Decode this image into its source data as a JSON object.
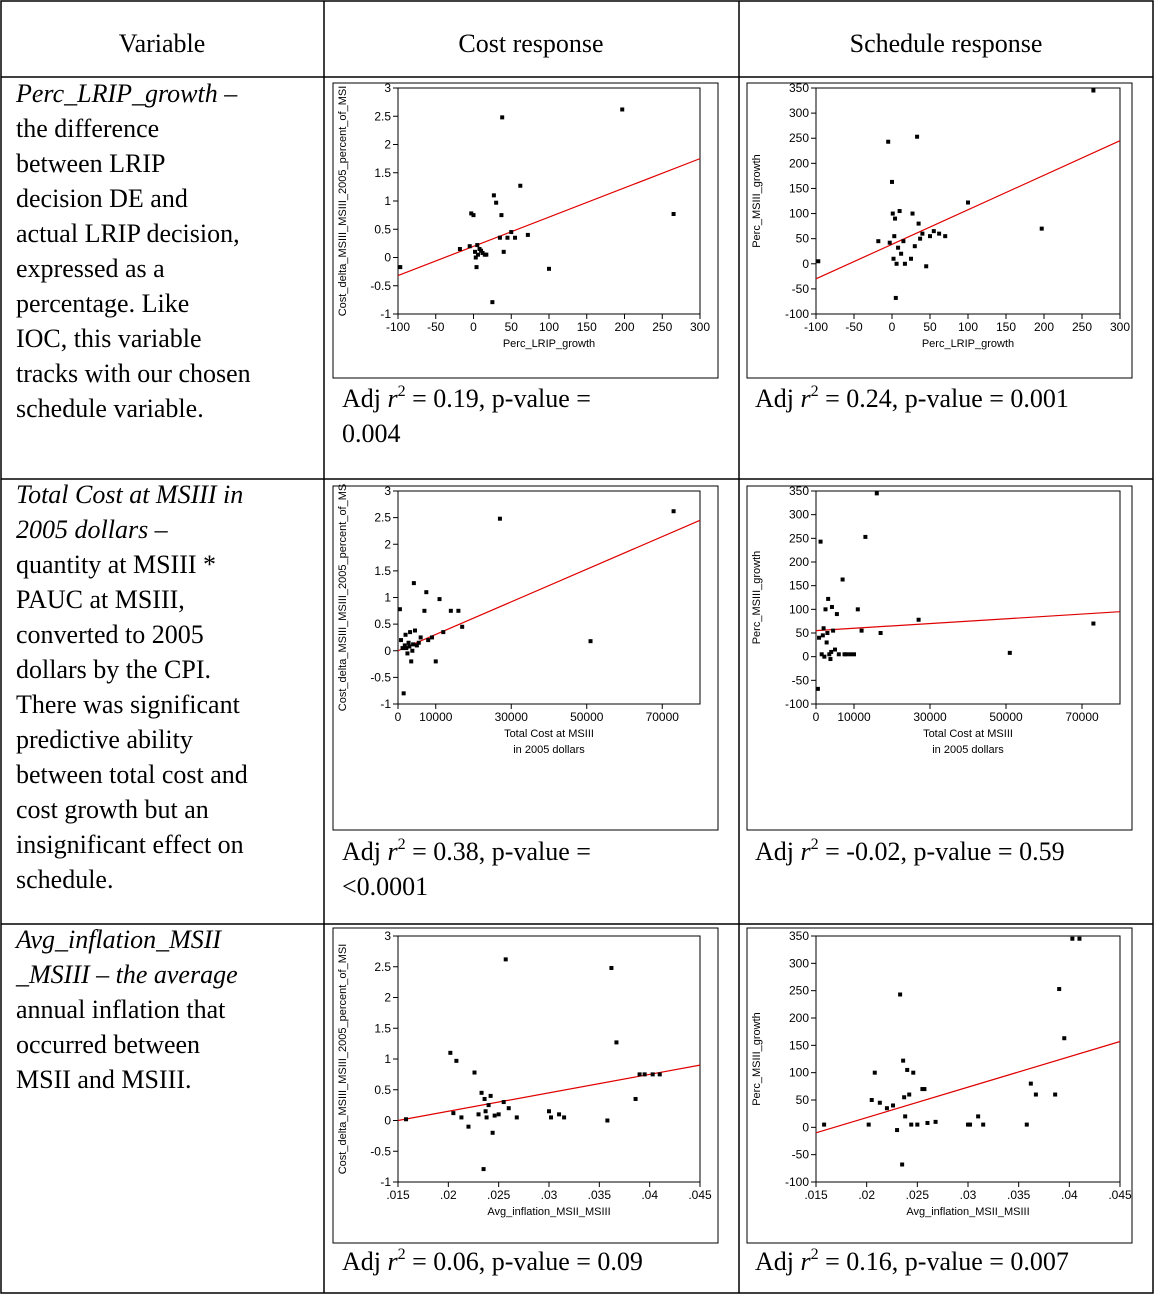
{
  "header": {
    "variable": "Variable",
    "cost": "Cost response",
    "schedule": "Schedule response"
  },
  "rows": [
    {
      "desc_lines": [
        {
          "t": "Perc_LRIP_growth –",
          "i": true
        },
        {
          "t": "the difference",
          "i": false
        },
        {
          "t": "between LRIP",
          "i": false
        },
        {
          "t": "decision DE and",
          "i": false
        },
        {
          "t": "actual LRIP decision,",
          "i": false
        },
        {
          "t": "expressed as a",
          "i": false
        },
        {
          "t": "percentage.  Like",
          "i": false
        },
        {
          "t": "IOC, this variable",
          "i": false
        },
        {
          "t": "tracks with our chosen",
          "i": false
        },
        {
          "t": "schedule variable.",
          "i": false
        }
      ],
      "cost_stat_lines": [
        "Adj r² = 0.19, p-value =",
        "0.004"
      ],
      "sched_stat_lines": [
        "Adj r² = 0.24, p-value = 0.001"
      ]
    },
    {
      "desc_lines": [
        {
          "t": "Total Cost at MSIII in",
          "i": true
        },
        {
          "t": "2005 dollars –",
          "i": true
        },
        {
          "t": "quantity at MSIII *",
          "i": false
        },
        {
          "t": "PAUC at MSIII,",
          "i": false
        },
        {
          "t": "converted to 2005",
          "i": false
        },
        {
          "t": "dollars by the CPI.",
          "i": false
        },
        {
          "t": "There was significant",
          "i": false
        },
        {
          "t": "predictive ability",
          "i": false
        },
        {
          "t": "between total cost and",
          "i": false
        },
        {
          "t": "cost growth but an",
          "i": false
        },
        {
          "t": "insignificant effect on",
          "i": false
        },
        {
          "t": "schedule.",
          "i": false
        }
      ],
      "cost_stat_lines": [
        "Adj r² = 0.38, p-value =",
        "<0.0001"
      ],
      "sched_stat_lines": [
        "Adj r² = -0.02, p-value = 0.59"
      ]
    },
    {
      "desc_lines": [
        {
          "t": "Avg_inflation_MSII",
          "i": true
        },
        {
          "t": "_MSIII – the average",
          "i": true
        },
        {
          "t": "annual inflation that",
          "i": false
        },
        {
          "t": "occurred between",
          "i": false
        },
        {
          "t": "MSII and MSIII.",
          "i": false
        }
      ],
      "cost_stat_lines": [
        "Adj r² = 0.06, p-value = 0.09"
      ],
      "sched_stat_lines": [
        "Adj r² = 0.16, p-value = 0.007"
      ]
    }
  ],
  "chart_data": [
    {
      "type": "scatter",
      "id": "cost-lrip",
      "xlabel": [
        "Perc_LRIP_growth"
      ],
      "ylabel": "Cost_delta_MSIII_MSIII_2005_percent_of_MSI",
      "xlim": [
        -100,
        300
      ],
      "ylim": [
        -1,
        3
      ],
      "xticks": [
        -100,
        -50,
        0,
        50,
        100,
        150,
        200,
        250,
        300
      ],
      "xtick_labels": [
        "-100",
        "-50",
        "0",
        "50",
        "100",
        "150",
        "200",
        "250",
        "300"
      ],
      "yticks": [
        -1,
        -0.5,
        0,
        0.5,
        1,
        1.5,
        2,
        2.5,
        3
      ],
      "ytick_labels": [
        "-1",
        "-0.5",
        "0",
        "0.5",
        "1",
        "1.5",
        "2",
        "2.5",
        "3"
      ],
      "fit": [
        [
          -100,
          -0.32
        ],
        [
          300,
          1.75
        ]
      ],
      "points": [
        [
          -97,
          -0.17
        ],
        [
          -18,
          0.15
        ],
        [
          -5,
          0.2
        ],
        [
          -3,
          0.78
        ],
        [
          0,
          0.75
        ],
        [
          2,
          0.1
        ],
        [
          3,
          0.0
        ],
        [
          4,
          -0.17
        ],
        [
          5,
          0.22
        ],
        [
          6,
          0.05
        ],
        [
          8,
          0.15
        ],
        [
          10,
          0.12
        ],
        [
          12,
          0.08
        ],
        [
          15,
          0.05
        ],
        [
          17,
          0.05
        ],
        [
          25,
          -0.79
        ],
        [
          27,
          1.1
        ],
        [
          30,
          0.97
        ],
        [
          35,
          0.35
        ],
        [
          37,
          0.75
        ],
        [
          38,
          2.48
        ],
        [
          40,
          0.1
        ],
        [
          45,
          0.35
        ],
        [
          50,
          0.45
        ],
        [
          55,
          0.35
        ],
        [
          62,
          1.27
        ],
        [
          72,
          0.4
        ],
        [
          100,
          -0.2
        ],
        [
          197,
          2.62
        ],
        [
          265,
          0.77
        ]
      ]
    },
    {
      "type": "scatter",
      "id": "sched-lrip",
      "xlabel": [
        "Perc_LRIP_growth"
      ],
      "ylabel": "Perc_MSIII_growth",
      "xlim": [
        -100,
        300
      ],
      "ylim": [
        -100,
        350
      ],
      "xticks": [
        -100,
        -50,
        0,
        50,
        100,
        150,
        200,
        250,
        300
      ],
      "xtick_labels": [
        "-100",
        "-50",
        "0",
        "50",
        "100",
        "150",
        "200",
        "250",
        "300"
      ],
      "yticks": [
        -100,
        -50,
        0,
        50,
        100,
        150,
        200,
        250,
        300,
        350
      ],
      "ytick_labels": [
        "-100",
        "-50",
        "0",
        "50",
        "100",
        "150",
        "200",
        "250",
        "300",
        "350"
      ],
      "fit": [
        [
          -100,
          -30
        ],
        [
          300,
          245
        ]
      ],
      "points": [
        [
          -97,
          5
        ],
        [
          -18,
          45
        ],
        [
          -5,
          243
        ],
        [
          -3,
          42
        ],
        [
          0,
          163
        ],
        [
          1,
          100
        ],
        [
          2,
          10
        ],
        [
          3,
          55
        ],
        [
          4,
          90
        ],
        [
          5,
          -68
        ],
        [
          6,
          0
        ],
        [
          8,
          32
        ],
        [
          10,
          105
        ],
        [
          12,
          20
        ],
        [
          15,
          45
        ],
        [
          17,
          0
        ],
        [
          25,
          10
        ],
        [
          27,
          100
        ],
        [
          30,
          35
        ],
        [
          33,
          253
        ],
        [
          35,
          80
        ],
        [
          37,
          50
        ],
        [
          40,
          60
        ],
        [
          45,
          -5
        ],
        [
          50,
          55
        ],
        [
          55,
          65
        ],
        [
          62,
          60
        ],
        [
          70,
          55
        ],
        [
          100,
          122
        ],
        [
          197,
          70
        ],
        [
          265,
          345
        ]
      ]
    },
    {
      "type": "scatter",
      "id": "cost-total",
      "xlabel": [
        "Total Cost at MSIII",
        "in 2005 dollars"
      ],
      "ylabel": "Cost_delta_MSIII_MSIII_2005_percent_of_MS",
      "xlim": [
        0,
        80000
      ],
      "ylim": [
        -1,
        3
      ],
      "xticks": [
        0,
        10000,
        30000,
        50000,
        70000
      ],
      "xtick_labels": [
        "0",
        "10000",
        "30000",
        "50000",
        "70000"
      ],
      "yticks": [
        -1,
        -0.5,
        0,
        0.5,
        1,
        1.5,
        2,
        2.5,
        3
      ],
      "ytick_labels": [
        "-1",
        "-0.5",
        "0",
        "0.5",
        "1",
        "1.5",
        "2",
        "2.5",
        "3"
      ],
      "fit": [
        [
          0,
          0.0
        ],
        [
          80000,
          2.45
        ]
      ],
      "points": [
        [
          500,
          0.78
        ],
        [
          800,
          0.2
        ],
        [
          1200,
          0.05
        ],
        [
          1500,
          -0.8
        ],
        [
          1800,
          0.1
        ],
        [
          2000,
          0.3
        ],
        [
          2200,
          0.05
        ],
        [
          2500,
          -0.05
        ],
        [
          2800,
          0.15
        ],
        [
          3000,
          0.08
        ],
        [
          3200,
          0.35
        ],
        [
          3500,
          -0.2
        ],
        [
          3800,
          0.0
        ],
        [
          4000,
          0.12
        ],
        [
          4200,
          1.27
        ],
        [
          4500,
          0.38
        ],
        [
          5000,
          0.1
        ],
        [
          5500,
          0.15
        ],
        [
          6000,
          0.25
        ],
        [
          7000,
          0.75
        ],
        [
          7500,
          1.1
        ],
        [
          8000,
          0.2
        ],
        [
          9000,
          0.25
        ],
        [
          10000,
          -0.2
        ],
        [
          11000,
          0.97
        ],
        [
          12000,
          0.35
        ],
        [
          14000,
          0.75
        ],
        [
          16000,
          0.75
        ],
        [
          17000,
          0.45
        ],
        [
          27000,
          2.48
        ],
        [
          51000,
          0.18
        ],
        [
          73000,
          2.62
        ]
      ]
    },
    {
      "type": "scatter",
      "id": "sched-total",
      "xlabel": [
        "Total Cost at MSIII",
        "in 2005 dollars"
      ],
      "ylabel": "Perc_MSIII_growth",
      "xlim": [
        0,
        80000
      ],
      "ylim": [
        -100,
        350
      ],
      "xticks": [
        0,
        10000,
        30000,
        50000,
        70000
      ],
      "xtick_labels": [
        "0",
        "10000",
        "30000",
        "50000",
        "70000"
      ],
      "yticks": [
        -100,
        -50,
        0,
        50,
        100,
        150,
        200,
        250,
        300,
        350
      ],
      "ytick_labels": [
        "-100",
        "-50",
        "0",
        "50",
        "100",
        "150",
        "200",
        "250",
        "300",
        "350"
      ],
      "fit": [
        [
          0,
          55
        ],
        [
          80000,
          95
        ]
      ],
      "points": [
        [
          500,
          -68
        ],
        [
          800,
          40
        ],
        [
          1200,
          243
        ],
        [
          1500,
          5
        ],
        [
          1800,
          45
        ],
        [
          2000,
          60
        ],
        [
          2200,
          0
        ],
        [
          2500,
          100
        ],
        [
          2800,
          30
        ],
        [
          3000,
          50
        ],
        [
          3200,
          122
        ],
        [
          3500,
          5
        ],
        [
          3800,
          -5
        ],
        [
          4000,
          10
        ],
        [
          4200,
          105
        ],
        [
          4500,
          55
        ],
        [
          5000,
          15
        ],
        [
          5500,
          90
        ],
        [
          6000,
          5
        ],
        [
          7000,
          163
        ],
        [
          7500,
          5
        ],
        [
          8000,
          5
        ],
        [
          9000,
          5
        ],
        [
          10000,
          5
        ],
        [
          11000,
          100
        ],
        [
          12000,
          55
        ],
        [
          13000,
          253
        ],
        [
          16000,
          345
        ],
        [
          17000,
          50
        ],
        [
          27000,
          78
        ],
        [
          51000,
          8
        ],
        [
          73000,
          70
        ]
      ]
    },
    {
      "type": "scatter",
      "id": "cost-infl",
      "xlabel": [
        "Avg_inflation_MSII_MSIII"
      ],
      "ylabel": "Cost_delta_MSIII_MSIII_2005_percent_of_MSI",
      "xlim": [
        0.015,
        0.045
      ],
      "ylim": [
        -1,
        3
      ],
      "xticks": [
        0.015,
        0.02,
        0.025,
        0.03,
        0.035,
        0.04,
        0.045
      ],
      "xtick_labels": [
        ".015",
        ".02",
        ".025",
        ".03",
        ".035",
        ".04",
        ".045"
      ],
      "yticks": [
        -1,
        -0.5,
        0,
        0.5,
        1,
        1.5,
        2,
        2.5,
        3
      ],
      "ytick_labels": [
        "-1",
        "-0.5",
        "0",
        "0.5",
        "1",
        "1.5",
        "2",
        "2.5",
        "3"
      ],
      "fit": [
        [
          0.015,
          0.0
        ],
        [
          0.045,
          0.9
        ]
      ],
      "points": [
        [
          0.0158,
          0.02
        ],
        [
          0.0202,
          1.1
        ],
        [
          0.0205,
          0.12
        ],
        [
          0.0208,
          0.97
        ],
        [
          0.0213,
          0.05
        ],
        [
          0.022,
          -0.1
        ],
        [
          0.0226,
          0.78
        ],
        [
          0.023,
          0.1
        ],
        [
          0.0233,
          0.45
        ],
        [
          0.0235,
          -0.79
        ],
        [
          0.0236,
          0.35
        ],
        [
          0.0237,
          0.15
        ],
        [
          0.0238,
          0.05
        ],
        [
          0.024,
          0.25
        ],
        [
          0.0242,
          0.4
        ],
        [
          0.0244,
          -0.2
        ],
        [
          0.0246,
          0.08
        ],
        [
          0.025,
          0.1
        ],
        [
          0.0255,
          0.3
        ],
        [
          0.0257,
          2.62
        ],
        [
          0.026,
          0.2
        ],
        [
          0.0268,
          0.05
        ],
        [
          0.03,
          0.15
        ],
        [
          0.0302,
          0.05
        ],
        [
          0.031,
          0.1
        ],
        [
          0.0315,
          0.05
        ],
        [
          0.0358,
          0.0
        ],
        [
          0.0362,
          2.48
        ],
        [
          0.0367,
          1.27
        ],
        [
          0.0386,
          0.35
        ],
        [
          0.039,
          0.75
        ],
        [
          0.0395,
          0.75
        ],
        [
          0.0403,
          0.75
        ],
        [
          0.041,
          0.75
        ]
      ]
    },
    {
      "type": "scatter",
      "id": "sched-infl",
      "xlabel": [
        "Avg_inflation_MSII_MSIII"
      ],
      "ylabel": "Perc_MSIII_growth",
      "xlim": [
        0.015,
        0.045
      ],
      "ylim": [
        -100,
        350
      ],
      "xticks": [
        0.015,
        0.02,
        0.025,
        0.03,
        0.035,
        0.04,
        0.045
      ],
      "xtick_labels": [
        ".015",
        ".02",
        ".025",
        ".03",
        ".035",
        ".04",
        ".045"
      ],
      "yticks": [
        -100,
        -50,
        0,
        50,
        100,
        150,
        200,
        250,
        300,
        350
      ],
      "ytick_labels": [
        "-100",
        "-50",
        "0",
        "50",
        "100",
        "150",
        "200",
        "250",
        "300",
        "350"
      ],
      "fit": [
        [
          0.015,
          -10
        ],
        [
          0.045,
          157
        ]
      ],
      "points": [
        [
          0.0158,
          5
        ],
        [
          0.0202,
          5
        ],
        [
          0.0205,
          50
        ],
        [
          0.0208,
          100
        ],
        [
          0.0213,
          45
        ],
        [
          0.022,
          35
        ],
        [
          0.0226,
          40
        ],
        [
          0.023,
          -5
        ],
        [
          0.0233,
          243
        ],
        [
          0.0235,
          -68
        ],
        [
          0.0236,
          122
        ],
        [
          0.0237,
          55
        ],
        [
          0.0238,
          20
        ],
        [
          0.024,
          105
        ],
        [
          0.0242,
          60
        ],
        [
          0.0244,
          5
        ],
        [
          0.0246,
          100
        ],
        [
          0.025,
          5
        ],
        [
          0.0255,
          70
        ],
        [
          0.0257,
          70
        ],
        [
          0.026,
          8
        ],
        [
          0.0268,
          10
        ],
        [
          0.03,
          5
        ],
        [
          0.0302,
          5
        ],
        [
          0.031,
          20
        ],
        [
          0.0315,
          5
        ],
        [
          0.0358,
          5
        ],
        [
          0.0362,
          80
        ],
        [
          0.0367,
          60
        ],
        [
          0.0386,
          60
        ],
        [
          0.039,
          253
        ],
        [
          0.0395,
          163
        ],
        [
          0.0403,
          345
        ],
        [
          0.041,
          345
        ]
      ]
    }
  ]
}
